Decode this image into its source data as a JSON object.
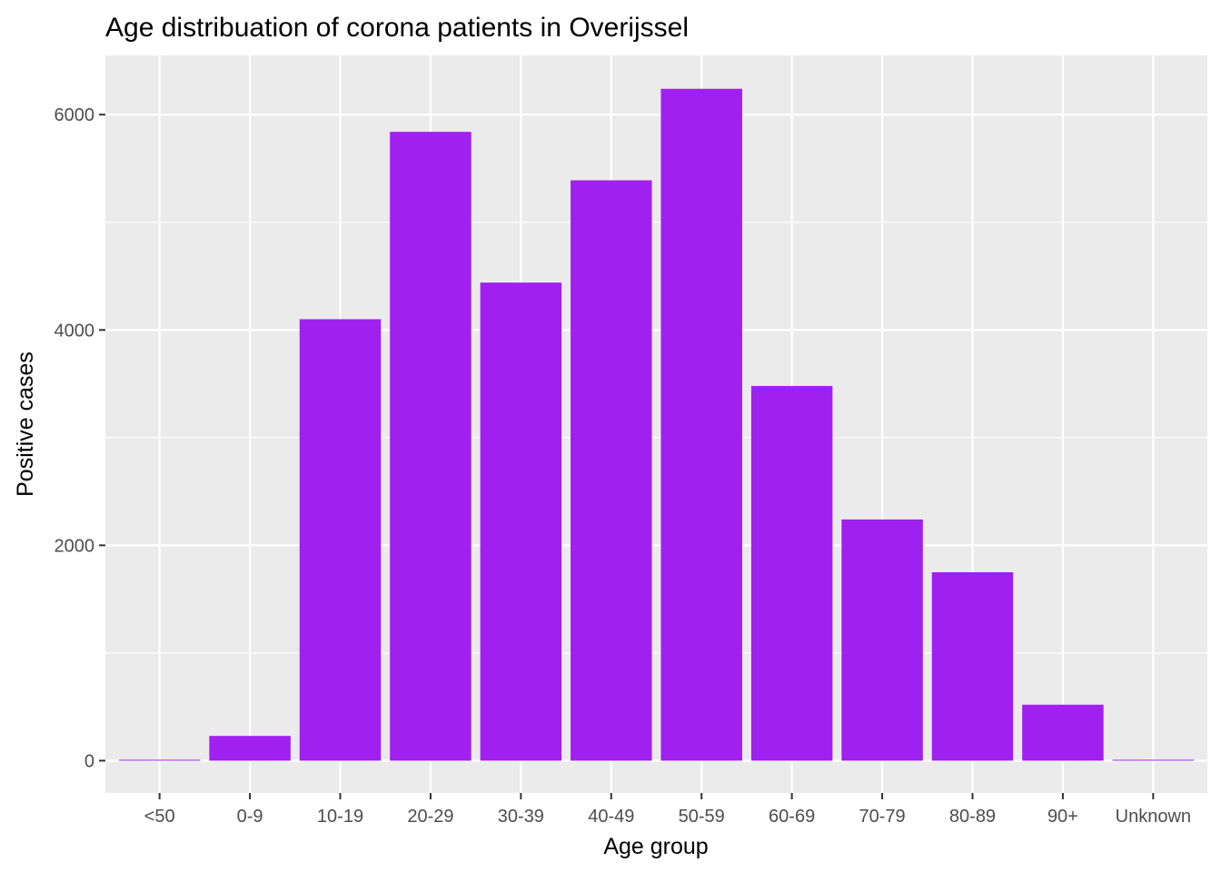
{
  "chart_data": {
    "type": "bar",
    "title": "Age distribuation of corona patients in Overijssel",
    "xlabel": "Age group",
    "ylabel": "Positive cases",
    "categories": [
      "<50",
      "0-9",
      "10-19",
      "20-29",
      "30-39",
      "40-49",
      "50-59",
      "60-69",
      "70-79",
      "80-89",
      "90+",
      "Unknown"
    ],
    "values": [
      5,
      230,
      4100,
      5840,
      4440,
      5390,
      6240,
      3480,
      2240,
      1750,
      520,
      5
    ],
    "ylim": [
      -300,
      6550
    ],
    "yticks": [
      0,
      2000,
      4000,
      6000
    ],
    "ytick_labels": [
      "0",
      "2000",
      "4000",
      "6000"
    ],
    "bar_color": "#a020f0",
    "panel_background": "#ebebeb",
    "grid": true,
    "legend": "none"
  }
}
